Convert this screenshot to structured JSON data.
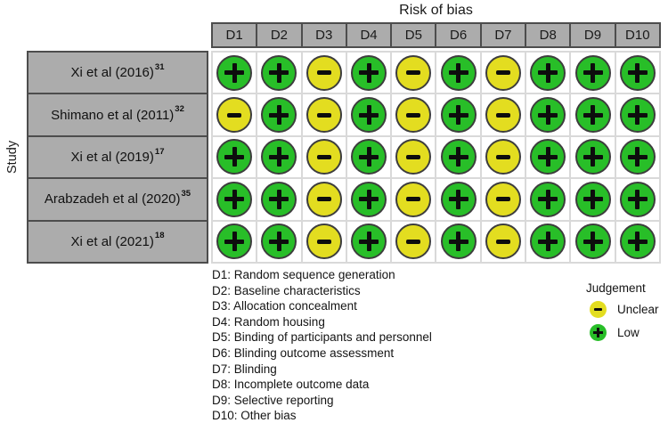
{
  "chart_data": {
    "type": "heatmap",
    "subtype": "risk-of-bias-traffic-light",
    "title": "Risk of bias",
    "ylabel": "Study",
    "columns": [
      "D1",
      "D2",
      "D3",
      "D4",
      "D5",
      "D6",
      "D7",
      "D8",
      "D9",
      "D10"
    ],
    "rows": [
      {
        "study": "Xi et al (2016)",
        "ref": "31",
        "values": [
          "+",
          "+",
          "-",
          "+",
          "-",
          "+",
          "-",
          "+",
          "+",
          "+"
        ]
      },
      {
        "study": "Shimano et al (2011)",
        "ref": "32",
        "values": [
          "-",
          "+",
          "-",
          "+",
          "-",
          "+",
          "-",
          "+",
          "+",
          "+"
        ]
      },
      {
        "study": "Xi et al (2019)",
        "ref": "17",
        "values": [
          "+",
          "+",
          "-",
          "+",
          "-",
          "+",
          "-",
          "+",
          "+",
          "+"
        ]
      },
      {
        "study": "Arabzadeh et al (2020)",
        "ref": "35",
        "values": [
          "+",
          "+",
          "-",
          "+",
          "-",
          "+",
          "-",
          "+",
          "+",
          "+"
        ]
      },
      {
        "study": "Xi et al (2021)",
        "ref": "18",
        "values": [
          "+",
          "+",
          "-",
          "+",
          "-",
          "+",
          "-",
          "+",
          "+",
          "+"
        ]
      }
    ],
    "value_meaning": {
      "+": "Low",
      "-": "Unclear"
    },
    "footnotes": [
      "D1: Random sequence generation",
      "D2: Baseline characteristics",
      "D3: Allocation concealment",
      "D4: Random housing",
      "D5: Binding of participants and personnel",
      "D6: Blinding outcome assessment",
      "D7: Blinding",
      "D8: Incomplete outcome data",
      "D9: Selective reporting",
      "D10: Other bias"
    ],
    "legend": {
      "title": "Judgement",
      "position": "bottom-right",
      "items": [
        {
          "label": "Unclear",
          "symbol": "-",
          "judgement": "unclear"
        },
        {
          "label": "Low",
          "symbol": "+",
          "judgement": "low"
        }
      ]
    },
    "colors": {
      "low": "#28be28",
      "unclear": "#e3dd20",
      "header_fill": "#acacac",
      "header_border": "#4d4d4d",
      "gridline": "#d9d9d9"
    },
    "grid": true
  }
}
